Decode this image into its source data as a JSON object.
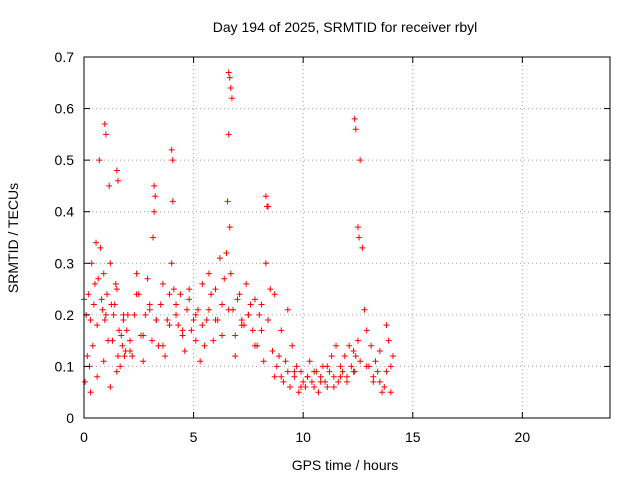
{
  "chart_data": {
    "type": "scatter",
    "title": "Day 194 of 2025, SRMTID for receiver rbyl",
    "xlabel": "GPS time / hours",
    "ylabel": "SRMTID / TECUs",
    "xlim": [
      0,
      24
    ],
    "ylim": [
      0,
      0.7
    ],
    "xticks": [
      0,
      5,
      10,
      15,
      20
    ],
    "yticks": [
      0,
      0.1,
      0.2,
      0.3,
      0.4,
      0.5,
      0.6,
      0.7
    ],
    "grid": true,
    "marker": "+",
    "color": "#ff0000",
    "series": [
      {
        "name": "rbyl",
        "x": [
          0.0,
          0.1,
          0.15,
          0.2,
          0.25,
          0.3,
          0.35,
          0.4,
          0.45,
          0.5,
          0.55,
          0.6,
          0.65,
          0.7,
          0.75,
          0.8,
          0.85,
          0.9,
          0.95,
          1.0,
          1.05,
          1.1,
          1.15,
          1.2,
          1.25,
          1.3,
          1.35,
          1.4,
          1.45,
          1.5,
          1.55,
          1.6,
          1.65,
          1.7,
          1.75,
          1.8,
          1.85,
          1.9,
          1.95,
          2.0,
          2.1,
          2.2,
          2.3,
          2.4,
          2.5,
          2.6,
          2.7,
          2.8,
          2.9,
          3.0,
          3.1,
          3.15,
          3.2,
          3.3,
          3.4,
          3.5,
          3.6,
          3.7,
          3.8,
          3.9,
          4.0,
          4.05,
          4.1,
          4.2,
          4.3,
          4.4,
          4.5,
          4.6,
          4.7,
          4.8,
          4.9,
          5.0,
          5.1,
          5.2,
          5.3,
          5.4,
          5.5,
          5.6,
          5.7,
          5.8,
          5.9,
          6.0,
          6.1,
          6.2,
          6.3,
          6.4,
          6.5,
          6.55,
          6.6,
          6.65,
          6.7,
          6.8,
          6.9,
          7.0,
          7.1,
          7.2,
          7.3,
          7.4,
          7.5,
          7.6,
          7.7,
          7.8,
          7.9,
          8.0,
          8.1,
          8.2,
          8.3,
          8.4,
          8.5,
          8.6,
          8.7,
          8.8,
          8.9,
          9.0,
          9.1,
          9.2,
          9.3,
          9.4,
          9.5,
          9.6,
          9.7,
          9.8,
          9.9,
          10.0,
          10.1,
          10.2,
          10.3,
          10.4,
          10.5,
          10.6,
          10.7,
          10.8,
          10.9,
          11.0,
          11.1,
          11.2,
          11.3,
          11.4,
          11.5,
          11.6,
          11.7,
          11.8,
          11.9,
          12.0,
          12.1,
          12.2,
          12.3,
          12.35,
          12.4,
          12.5,
          12.6,
          12.7,
          12.8,
          12.9,
          13.0,
          13.1,
          13.2,
          13.3,
          13.4,
          13.5,
          13.6,
          13.7,
          13.8,
          13.9,
          14.0,
          14.1,
          0.05,
          0.3,
          0.6,
          0.9,
          1.2,
          1.5,
          1.8,
          2.1,
          2.4,
          2.7,
          3.0,
          3.3,
          3.6,
          3.9,
          4.2,
          4.5,
          4.8,
          5.1,
          5.4,
          5.7,
          6.0,
          6.3,
          6.6,
          6.9,
          7.2,
          7.5,
          7.8,
          8.1,
          8.4,
          8.7,
          9.0,
          9.3,
          9.6,
          9.9,
          10.2,
          10.5,
          10.8,
          11.1,
          11.4,
          11.7,
          12.0,
          12.3,
          12.6,
          12.9,
          13.2,
          13.5,
          13.8,
          14.0,
          0.95,
          1.0,
          1.5,
          1.55,
          3.2,
          3.25,
          4.0,
          4.05,
          6.6,
          6.65,
          6.7,
          6.75,
          8.3,
          8.35,
          12.35,
          12.4,
          12.5,
          12.55
        ],
        "y": [
          0.23,
          0.2,
          0.12,
          0.24,
          0.1,
          0.19,
          0.3,
          0.14,
          0.22,
          0.26,
          0.34,
          0.18,
          0.27,
          0.5,
          0.33,
          0.23,
          0.21,
          0.28,
          0.19,
          0.2,
          0.24,
          0.15,
          0.45,
          0.3,
          0.22,
          0.15,
          0.2,
          0.22,
          0.26,
          0.09,
          0.12,
          0.17,
          0.1,
          0.16,
          0.14,
          0.19,
          0.12,
          0.13,
          0.17,
          0.2,
          0.15,
          0.12,
          0.2,
          0.28,
          0.24,
          0.16,
          0.11,
          0.2,
          0.27,
          0.22,
          0.15,
          0.35,
          0.4,
          0.19,
          0.14,
          0.22,
          0.26,
          0.12,
          0.19,
          0.24,
          0.3,
          0.42,
          0.25,
          0.2,
          0.18,
          0.24,
          0.16,
          0.13,
          0.21,
          0.25,
          0.17,
          0.19,
          0.15,
          0.21,
          0.11,
          0.18,
          0.14,
          0.19,
          0.21,
          0.24,
          0.15,
          0.25,
          0.19,
          0.31,
          0.22,
          0.27,
          0.32,
          0.42,
          0.55,
          0.37,
          0.28,
          0.21,
          0.16,
          0.23,
          0.24,
          0.19,
          0.18,
          0.26,
          0.2,
          0.22,
          0.17,
          0.23,
          0.14,
          0.2,
          0.17,
          0.11,
          0.3,
          0.41,
          0.25,
          0.13,
          0.08,
          0.1,
          0.12,
          0.08,
          0.07,
          0.11,
          0.09,
          0.06,
          0.14,
          0.08,
          0.1,
          0.05,
          0.09,
          0.07,
          0.06,
          0.08,
          0.11,
          0.07,
          0.06,
          0.09,
          0.05,
          0.08,
          0.1,
          0.07,
          0.06,
          0.09,
          0.12,
          0.08,
          0.14,
          0.07,
          0.1,
          0.09,
          0.12,
          0.08,
          0.14,
          0.1,
          0.13,
          0.09,
          0.12,
          0.15,
          0.5,
          0.33,
          0.21,
          0.17,
          0.1,
          0.14,
          0.08,
          0.11,
          0.09,
          0.07,
          0.05,
          0.06,
          0.18,
          0.15,
          0.1,
          0.12,
          0.07,
          0.05,
          0.08,
          0.11,
          0.06,
          0.25,
          0.2,
          0.13,
          0.24,
          0.16,
          0.21,
          0.19,
          0.14,
          0.18,
          0.22,
          0.17,
          0.23,
          0.2,
          0.26,
          0.28,
          0.19,
          0.16,
          0.21,
          0.12,
          0.18,
          0.2,
          0.14,
          0.22,
          0.19,
          0.24,
          0.17,
          0.21,
          0.09,
          0.06,
          0.08,
          0.09,
          0.07,
          0.1,
          0.06,
          0.08,
          0.07,
          0.09,
          0.11,
          0.1,
          0.07,
          0.13,
          0.09,
          0.05,
          0.57,
          0.55,
          0.48,
          0.46,
          0.45,
          0.43,
          0.52,
          0.5,
          0.67,
          0.66,
          0.64,
          0.62,
          0.43,
          0.41,
          0.58,
          0.56,
          0.37,
          0.35
        ]
      }
    ]
  }
}
